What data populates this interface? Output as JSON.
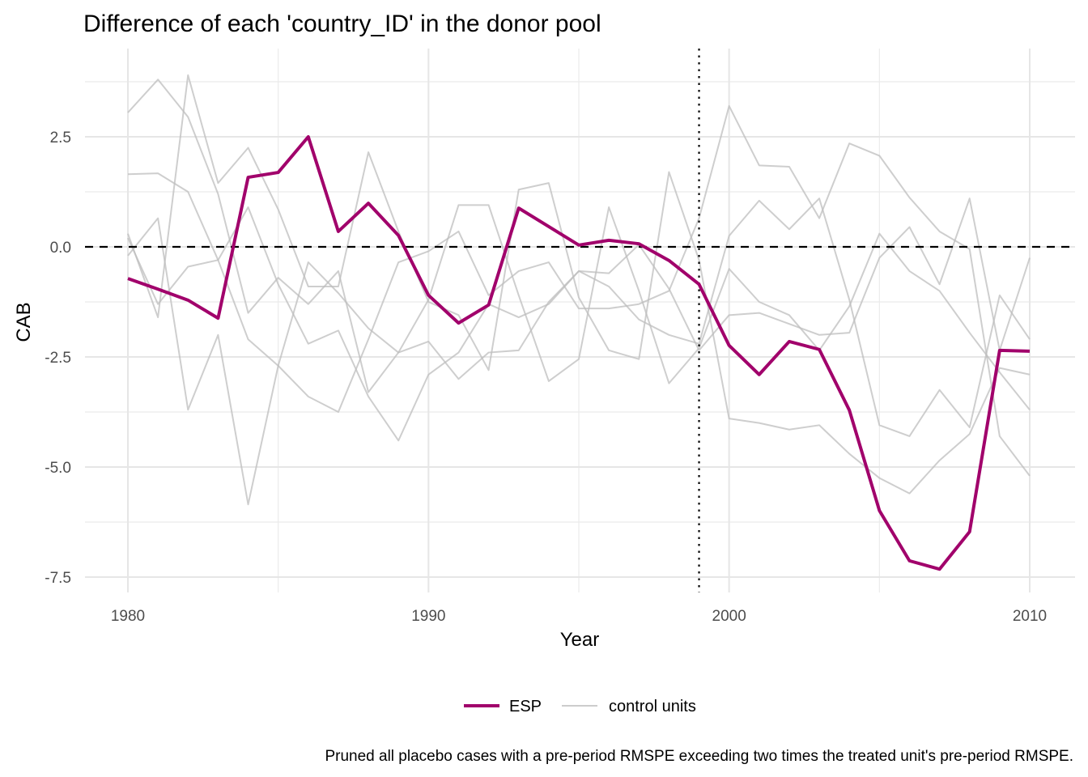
{
  "chart_data": {
    "type": "line",
    "title": "Difference of each 'country_ID' in the donor pool",
    "xlabel": "Year",
    "ylabel": "CAB",
    "caption": "Pruned all placebo cases with a pre-period RMSPE exceeding two times the treated unit's pre-period RMSPE.",
    "xlim": [
      1978.6,
      2011.5
    ],
    "ylim": [
      -8.0,
      4.4
    ],
    "x_ticks": [
      1980,
      1990,
      2000,
      2010
    ],
    "x_tick_labels": [
      "1980",
      "1990",
      "2000",
      "2010"
    ],
    "y_ticks": [
      2.5,
      0.0,
      -2.5,
      -5.0,
      -7.5
    ],
    "y_tick_labels": [
      "2.5",
      "0.0",
      "-2.5",
      "-5.0",
      "-7.5"
    ],
    "grid": true,
    "reference_hline": 0,
    "treatment_vline": 1999,
    "legend": {
      "position": "bottom",
      "entries": [
        {
          "label": "ESP",
          "color": "#a1006b"
        },
        {
          "label": "control units",
          "color": "#cccccc"
        }
      ]
    },
    "x": [
      1980,
      1981,
      1982,
      1983,
      1984,
      1985,
      1986,
      1987,
      1988,
      1989,
      1990,
      1991,
      1992,
      1993,
      1994,
      1995,
      1996,
      1997,
      1998,
      1999,
      2000,
      2001,
      2002,
      2003,
      2004,
      2005,
      2006,
      2007,
      2008,
      2009,
      2010
    ],
    "series": [
      {
        "name": "ESP",
        "role": "treated",
        "color": "#a1006b",
        "values": [
          -0.72,
          -0.96,
          -1.21,
          -1.62,
          1.58,
          1.69,
          2.5,
          0.35,
          0.99,
          0.26,
          -1.1,
          -1.73,
          -1.32,
          0.88,
          0.46,
          0.04,
          0.15,
          0.07,
          -0.31,
          -0.85,
          -2.24,
          -2.9,
          -2.15,
          -2.33,
          -3.71,
          -5.99,
          -7.13,
          -7.32,
          -6.47,
          -2.35,
          -2.37
        ]
      },
      {
        "name": "control 1",
        "role": "control",
        "color": "#bfbfbf",
        "values": [
          3.05,
          3.8,
          2.95,
          1.2,
          -1.5,
          -0.7,
          -1.3,
          -0.55,
          -3.3,
          -2.4,
          -2.15,
          -3.0,
          -2.4,
          -2.35,
          -1.25,
          -0.55,
          -0.9,
          -1.65,
          -2.0,
          -2.2,
          0.25,
          1.05,
          0.4,
          1.1,
          -1.2,
          -4.05,
          -4.3,
          -3.25,
          -4.1,
          -1.1,
          -2.1
        ]
      },
      {
        "name": "control 2",
        "role": "control",
        "color": "#bfbfbf",
        "values": [
          1.65,
          1.67,
          1.25,
          -0.3,
          -2.1,
          -2.7,
          -3.4,
          -3.75,
          -2.1,
          -0.35,
          -0.1,
          0.35,
          -1.1,
          -0.55,
          -0.35,
          -1.4,
          -1.4,
          -1.3,
          -1.0,
          0.65,
          3.2,
          1.85,
          1.82,
          0.65,
          2.35,
          2.07,
          1.12,
          0.35,
          -0.05,
          -4.3,
          -5.2
        ]
      },
      {
        "name": "control 3",
        "role": "control",
        "color": "#bfbfbf",
        "values": [
          0.3,
          -1.6,
          3.9,
          1.45,
          2.25,
          0.85,
          -0.9,
          -0.9,
          2.15,
          0.35,
          -1.25,
          -1.55,
          -2.8,
          1.3,
          1.45,
          -1.15,
          -2.35,
          -2.55,
          1.7,
          -0.3,
          -3.9,
          -4.0,
          -4.15,
          -4.05,
          -4.7,
          -5.25,
          -5.6,
          -4.85,
          -4.25,
          -2.75,
          -2.9
        ]
      },
      {
        "name": "control 4",
        "role": "control",
        "color": "#bfbfbf",
        "values": [
          -0.2,
          0.65,
          -3.7,
          -2.0,
          -5.85,
          -2.7,
          -0.35,
          -1.05,
          -1.85,
          -2.4,
          -1.2,
          0.95,
          0.95,
          -1.1,
          -3.05,
          -2.55,
          0.9,
          -1.0,
          -3.1,
          -2.3,
          -0.5,
          -1.25,
          -1.55,
          -2.35,
          -1.35,
          0.3,
          -0.55,
          -1.0,
          -1.95,
          -2.85,
          -3.7
        ]
      },
      {
        "name": "control 5",
        "role": "control",
        "color": "#bfbfbf",
        "values": [
          0.2,
          -1.3,
          -0.45,
          -0.3,
          0.9,
          -0.85,
          -2.2,
          -1.9,
          -3.4,
          -4.4,
          -2.9,
          -2.4,
          -1.3,
          -1.6,
          -1.3,
          -0.55,
          -0.6,
          0.05,
          -0.95,
          -2.35,
          -1.55,
          -1.5,
          -1.75,
          -2.0,
          -1.95,
          -0.25,
          0.45,
          -0.85,
          1.1,
          -2.35,
          -0.25
        ]
      }
    ]
  }
}
